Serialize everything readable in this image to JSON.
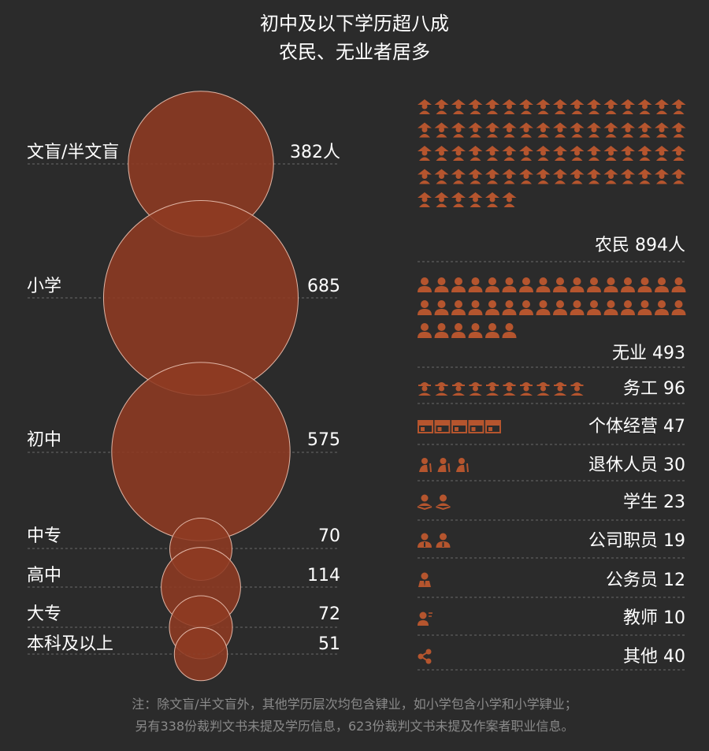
{
  "title": [
    "初中及以下学历超八成",
    "农民、无业者居多"
  ],
  "note": [
    "注：除文盲/半文盲外，其他学历层次均包含肄业，如小学包含小学和小学肄业；",
    "另有338份裁判文书未提及学历信息，623份裁判文书未提及作案者职业信息。"
  ],
  "colors": {
    "background": "#2b2b2b",
    "bubble": "#8e3a22",
    "bubble_stroke": "#e0b4a4",
    "icon": "#b5552e",
    "text": "#ffffff",
    "note": "#8a8a8a"
  },
  "chart_data": [
    {
      "type": "bubble",
      "categories": [
        "文盲/半文盲",
        "小学",
        "初中",
        "中专",
        "高中",
        "大专",
        "本科及以上"
      ],
      "values": [
        382,
        685,
        575,
        70,
        114,
        72,
        51
      ],
      "value_labels": [
        "382人",
        "685",
        "575",
        "70",
        "114",
        "72",
        "51"
      ]
    },
    {
      "type": "pictogram",
      "categories": [
        "农民",
        "无业",
        "务工",
        "个体经营",
        "退休人员",
        "学生",
        "公司职员",
        "公务员",
        "教师",
        "其他"
      ],
      "values": [
        894,
        493,
        96,
        47,
        30,
        23,
        19,
        12,
        10,
        40
      ],
      "labels": [
        "农民 894人",
        "无业 493",
        "务工 96",
        "个体经营 47",
        "退休人员 30",
        "学生 23",
        "公司职员 19",
        "公务员 12",
        "教师 10",
        "其他 40"
      ],
      "icons": [
        "farmer-icon",
        "person-icon",
        "worker-icon",
        "shop-icon",
        "elder-icon",
        "student-icon",
        "staff-icon",
        "civil-servant-icon",
        "teacher-icon",
        "share-icon"
      ],
      "icon_counts": [
        70,
        38,
        10,
        5,
        3,
        2,
        2,
        1,
        1,
        1
      ]
    }
  ]
}
